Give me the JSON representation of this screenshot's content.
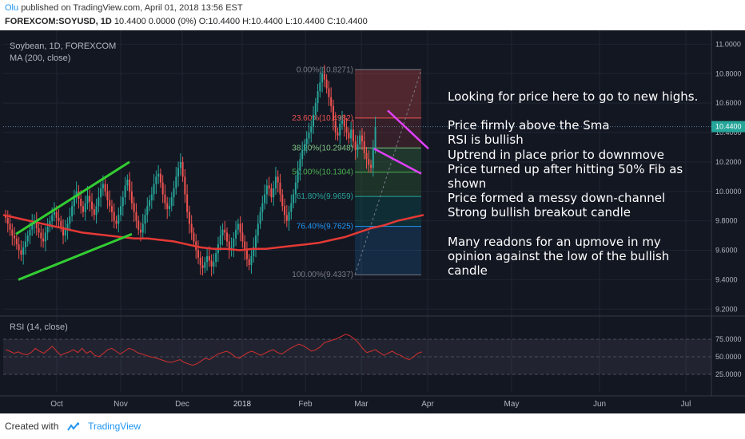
{
  "header": {
    "author": "Olu",
    "published": "published on TradingView.com, April 01, 2018 13:56 EST",
    "symbol_line": "FOREXCOM:SOYUSD, 1D",
    "ohlc": "10.4400 0.0000 (0%) O:10.4400 H:10.4400 L:10.4400 C:10.4400"
  },
  "footer": {
    "created_with": "Created with",
    "brand": "TradingView"
  },
  "chart_data": {
    "type": "candlestick",
    "title": "Soybean, 1D, FOREXCOM",
    "indicator_label": "MA (200, close)",
    "rsi_label": "RSI (14, close)",
    "current_price": "10.4400",
    "y_ticks": [
      "11.0000",
      "10.8000",
      "10.6000",
      "10.4000",
      "10.2000",
      "10.0000",
      "9.8000",
      "9.6000",
      "9.4000",
      "9.2000"
    ],
    "rsi_ticks": [
      "75.0000",
      "50.0000",
      "25.0000"
    ],
    "x_ticks": [
      "Oct",
      "Nov",
      "Dec",
      "2018",
      "Feb",
      "Mar",
      "Apr",
      "May",
      "Jun",
      "Jul"
    ],
    "fib_levels": [
      {
        "label": "0.00%(10.8271)",
        "value": 10.8271
      },
      {
        "label": "23.60%(10.4982)",
        "value": 10.4982
      },
      {
        "label": "38.20%(10.2948)",
        "value": 10.2948
      },
      {
        "label": "50.00%(10.1304)",
        "value": 10.1304
      },
      {
        "label": "61.80%(9.9659)",
        "value": 9.9659
      },
      {
        "label": "76.40%(9.7625)",
        "value": 9.7625
      },
      {
        "label": "100.00%(9.4337)",
        "value": 9.4337
      }
    ],
    "colors": {
      "up": "#26a69a",
      "down": "#ef5350",
      "ma": "#e53935",
      "channel": "#32cd32",
      "down_channel": "#e040fb",
      "rsi": "#d32f2f"
    },
    "closes": [
      9.82,
      9.78,
      9.74,
      9.7,
      9.68,
      9.64,
      9.6,
      9.57,
      9.62,
      9.66,
      9.7,
      9.74,
      9.78,
      9.8,
      9.75,
      9.72,
      9.68,
      9.66,
      9.72,
      9.76,
      9.8,
      9.84,
      9.86,
      9.82,
      9.8,
      9.76,
      9.7,
      9.74,
      9.78,
      9.83,
      9.9,
      9.96,
      10.0,
      9.95,
      9.9,
      9.86,
      9.92,
      9.97,
      9.93,
      9.88,
      9.84,
      9.9,
      9.96,
      10.02,
      10.05,
      10.0,
      9.94,
      9.9,
      9.86,
      9.8,
      9.78,
      9.84,
      9.9,
      9.96,
      10.04,
      10.08,
      10.0,
      9.92,
      9.86,
      9.8,
      9.74,
      9.72,
      9.78,
      9.84,
      9.9,
      9.94,
      9.98,
      10.05,
      10.1,
      10.12,
      10.06,
      9.98,
      9.92,
      9.88,
      9.9,
      9.96,
      10.02,
      10.1,
      10.16,
      10.2,
      10.1,
      9.98,
      9.86,
      9.78,
      9.72,
      9.66,
      9.6,
      9.55,
      9.5,
      9.48,
      9.52,
      9.56,
      9.53,
      9.49,
      9.52,
      9.58,
      9.64,
      9.7,
      9.74,
      9.72,
      9.66,
      9.6,
      9.62,
      9.68,
      9.74,
      9.78,
      9.72,
      9.66,
      9.6,
      9.54,
      9.5,
      9.56,
      9.62,
      9.7,
      9.78,
      9.86,
      9.92,
      9.98,
      10.04,
      10.02,
      9.96,
      10.02,
      10.1,
      10.06,
      9.98,
      9.9,
      9.84,
      9.8,
      9.86,
      9.92,
      9.98,
      10.06,
      10.14,
      10.22,
      10.28,
      10.32,
      10.36,
      10.4,
      10.44,
      10.52,
      10.6,
      10.68,
      10.74,
      10.8,
      10.76,
      10.7,
      10.64,
      10.58,
      10.48,
      10.4,
      10.38,
      10.46,
      10.48,
      10.44,
      10.4,
      10.36,
      10.42,
      10.34,
      10.28,
      10.32,
      10.38,
      10.34,
      10.26,
      10.22,
      10.18,
      10.16,
      10.3,
      10.44
    ],
    "ma_y": [
      9.84,
      9.82,
      9.8,
      9.78,
      9.76,
      9.74,
      9.72,
      9.71,
      9.7,
      9.69,
      9.68,
      9.68,
      9.67,
      9.66,
      9.64,
      9.62,
      9.61,
      9.61,
      9.6,
      9.61,
      9.61,
      9.62,
      9.63,
      9.64,
      9.65,
      9.67,
      9.69,
      9.72,
      9.75,
      9.77,
      9.8,
      9.82,
      9.84
    ],
    "rsi": [
      60,
      58,
      55,
      57,
      54,
      53,
      56,
      62,
      58,
      55,
      60,
      65,
      58,
      52,
      55,
      57,
      60,
      56,
      62,
      55,
      58,
      52,
      50,
      55,
      60,
      62,
      58,
      54,
      58,
      62,
      60,
      56,
      54,
      52,
      50,
      49,
      47,
      45,
      43,
      42,
      44,
      46,
      42,
      40,
      38,
      40,
      44,
      48,
      46,
      50,
      54,
      56,
      58,
      55,
      50,
      48,
      52,
      56,
      58,
      55,
      52,
      55,
      58,
      60,
      56,
      54,
      58,
      62,
      65,
      68,
      66,
      62,
      58,
      60,
      64,
      70,
      72,
      74,
      76,
      79,
      82,
      80,
      76,
      70,
      62,
      56,
      58,
      60,
      56,
      52,
      55,
      58,
      54,
      52,
      48,
      46,
      50,
      55,
      57
    ]
  },
  "annotation": {
    "lines1": [
      "Looking for price here to go to new highs."
    ],
    "lines2": [
      "Price firmly above the Sma",
      "RSI is bullish",
      "Uptrend in place prior to downmove",
      "Price turned up after hitting 50% Fib as",
      "shown",
      "Price formed a messy down-channel",
      "Strong bullish breakout candle"
    ],
    "lines3": [
      "Many readons for an upmove in my",
      "opinion against the low of the bullish",
      "candle"
    ]
  }
}
